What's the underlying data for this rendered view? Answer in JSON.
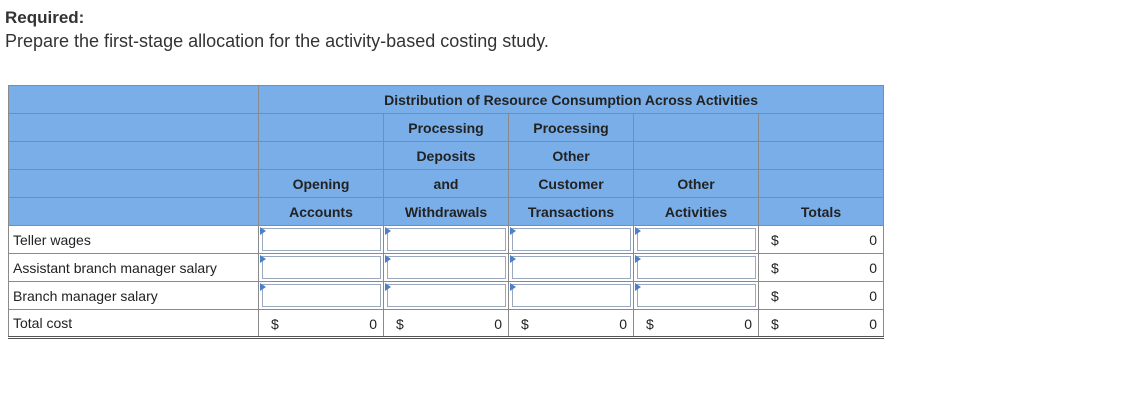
{
  "required": {
    "label": "Required:",
    "text": "Prepare the first-stage allocation for the activity-based costing study."
  },
  "table": {
    "group_header": "Distribution of Resource Consumption Across Activities",
    "columns": [
      {
        "line1": "",
        "line2": "",
        "line3": "Opening",
        "line4": "Accounts"
      },
      {
        "line1": "Processing",
        "line2": "Deposits",
        "line3": "and",
        "line4": "Withdrawals"
      },
      {
        "line1": "Processing",
        "line2": "Other",
        "line3": "Customer",
        "line4": "Transactions"
      },
      {
        "line1": "",
        "line2": "",
        "line3": "Other",
        "line4": "Activities"
      },
      {
        "line1": "",
        "line2": "",
        "line3": "",
        "line4": "Totals"
      }
    ],
    "rows": [
      {
        "label": "Teller wages",
        "total_symbol": "$",
        "total_value": "0"
      },
      {
        "label": "Assistant branch manager salary",
        "total_symbol": "$",
        "total_value": "0"
      },
      {
        "label": "Branch manager salary",
        "total_symbol": "$",
        "total_value": "0"
      }
    ],
    "total_row": {
      "label": "Total cost",
      "cells": [
        {
          "symbol": "$",
          "value": "0"
        },
        {
          "symbol": "$",
          "value": "0"
        },
        {
          "symbol": "$",
          "value": "0"
        },
        {
          "symbol": "$",
          "value": "0"
        },
        {
          "symbol": "$",
          "value": "0"
        }
      ]
    }
  }
}
